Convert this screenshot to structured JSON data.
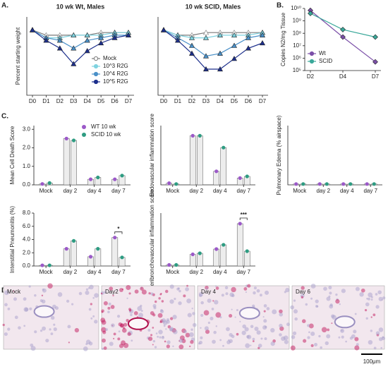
{
  "panels": [
    "A.",
    "B.",
    "C.",
    "D."
  ],
  "chart_data": [
    {
      "type": "line",
      "title": "10 wk Wt, Males",
      "ylabel": "Percent starting weight",
      "marker": "triangle",
      "categories": [
        "D0",
        "D1",
        "D2",
        "D3",
        "D4",
        "D5",
        "D6",
        "D7"
      ],
      "ylim": [
        75,
        105
      ],
      "legend": "lower right",
      "series": [
        {
          "name": "Mock",
          "color": "#7a7a7a",
          "values": [
            100,
            98,
            98,
            98,
            98,
            99,
            99,
            99
          ]
        },
        {
          "name": "10^3 R2G",
          "color": "#7fd3e0",
          "values": [
            100,
            97,
            97,
            98,
            98,
            98,
            99,
            99
          ]
        },
        {
          "name": "10^4 R2G",
          "color": "#4a90c8",
          "values": [
            100,
            97,
            96,
            93,
            96,
            97,
            98,
            98
          ]
        },
        {
          "name": "10^5 R2G",
          "color": "#1c2f8c",
          "values": [
            100,
            96,
            93,
            87,
            92,
            95,
            97,
            98
          ]
        }
      ]
    },
    {
      "type": "line",
      "title": "10 wk SCID, Males",
      "marker": "triangle",
      "categories": [
        "D0",
        "D1",
        "D2",
        "D3",
        "D4",
        "D5",
        "D6",
        "D7"
      ],
      "ylim": [
        75,
        105
      ],
      "series": [
        {
          "color": "#7a7a7a",
          "values": [
            100,
            98,
            98,
            99,
            99,
            99,
            99,
            99
          ]
        },
        {
          "color": "#7fd3e0",
          "values": [
            100,
            98,
            97,
            97,
            98,
            98,
            98,
            99
          ]
        },
        {
          "color": "#4a90c8",
          "values": [
            100,
            97,
            94,
            90,
            91,
            94,
            97,
            98
          ]
        },
        {
          "color": "#1c2f8c",
          "values": [
            100,
            96,
            91,
            85,
            85,
            89,
            93,
            95
          ]
        }
      ]
    },
    {
      "type": "line",
      "ylabel": "Copies N2/mg Tissue",
      "marker": "diamond",
      "log_scale": true,
      "legend": "lower left",
      "categories": [
        "D2",
        "D4",
        "D7"
      ],
      "ylim": [
        100000,
        10000000000
      ],
      "yticks": [
        {
          "value": 100000,
          "label": "10⁵"
        },
        {
          "value": 1000000,
          "label": "10⁶"
        },
        {
          "value": 10000000,
          "label": "10⁷"
        },
        {
          "value": 100000000,
          "label": "10⁸"
        },
        {
          "value": 1000000000,
          "label": "10⁹"
        },
        {
          "value": 10000000000,
          "label": "10¹⁰"
        }
      ],
      "series": [
        {
          "name": "Wt",
          "color": "#7b4fa8",
          "values": [
            7000000000,
            50000000,
            500000
          ]
        },
        {
          "name": "SCID",
          "color": "#3aa89a",
          "values": [
            4000000000,
            200000000,
            50000000
          ]
        }
      ]
    },
    {
      "type": "bar",
      "ylabel": "Mean Cell Death Score",
      "categories": [
        "Mock",
        "day 2",
        "day 4",
        "day 7"
      ],
      "ylim": [
        0,
        3.2
      ],
      "legend": "upper right",
      "yticks": [
        {
          "value": 0,
          "label": "0.0"
        },
        {
          "value": 1,
          "label": "1.0"
        },
        {
          "value": 2,
          "label": "2.0"
        },
        {
          "value": 3,
          "label": "3.0"
        }
      ],
      "series": [
        {
          "name": "WT 10 wk",
          "color": "#9b59c8",
          "values": [
            0.05,
            2.5,
            0.3,
            0.3
          ]
        },
        {
          "name": "SCID 10 wk",
          "color": "#2e9c82",
          "values": [
            0.1,
            2.4,
            0.4,
            0.5
          ]
        }
      ]
    },
    {
      "type": "bar",
      "ylabel": "Endovascular inflammation score",
      "categories": [
        "Mock",
        "day 2",
        "day 4",
        "day 7"
      ],
      "ylim": [
        0,
        3.5
      ],
      "series": [
        {
          "color": "#9b59c8",
          "values": [
            0.1,
            2.9,
            0.8,
            0.4
          ]
        },
        {
          "color": "#2e9c82",
          "values": [
            0.05,
            2.9,
            2.2,
            0.5
          ]
        }
      ]
    },
    {
      "type": "bar",
      "ylabel": "Pulmonary Edema (% airspace)",
      "categories": [
        "Mock",
        "day 2",
        "day 4",
        "day 7"
      ],
      "ylim": [
        0,
        3.5
      ],
      "series": [
        {
          "color": "#9b59c8",
          "values": [
            0.05,
            0.05,
            0.05,
            0.05
          ]
        },
        {
          "color": "#2e9c82",
          "values": [
            0.05,
            0.05,
            0.05,
            0.05
          ]
        }
      ]
    },
    {
      "type": "bar",
      "ylabel": "Interstitial Pneumonitis (%)",
      "categories": [
        "Mock",
        "day 2",
        "day 4",
        "day 7"
      ],
      "ylim": [
        0,
        8
      ],
      "yticks": [
        {
          "value": 0,
          "label": "0.0"
        },
        {
          "value": 2,
          "label": "2.0"
        },
        {
          "value": 4,
          "label": "4.0"
        },
        {
          "value": 6,
          "label": "6.0"
        },
        {
          "value": 8,
          "label": "8.0"
        }
      ],
      "annotations": [
        {
          "text": "*",
          "category": "day 7"
        }
      ],
      "series": [
        {
          "color": "#9b59c8",
          "values": [
            0.1,
            2.6,
            1.4,
            4.3
          ]
        },
        {
          "color": "#2e9c82",
          "values": [
            0.1,
            3.8,
            2.6,
            1.3
          ]
        }
      ]
    },
    {
      "type": "bar",
      "ylabel": "Peribronchovascular inflammation score",
      "categories": [
        "Mock",
        "day 2",
        "day 4",
        "day 7"
      ],
      "ylim": [
        0,
        5
      ],
      "annotations": [
        {
          "text": "***",
          "category": "day 7"
        }
      ],
      "series": [
        {
          "color": "#9b59c8",
          "values": [
            0.1,
            1.1,
            1.6,
            4.0
          ]
        },
        {
          "color": "#2e9c82",
          "values": [
            0.1,
            1.2,
            2.0,
            1.4
          ]
        }
      ]
    }
  ],
  "micrographs": {
    "labels": [
      "Mock",
      "Day2",
      "Day 4",
      "Day 6"
    ],
    "scale_bar": "100μm"
  }
}
